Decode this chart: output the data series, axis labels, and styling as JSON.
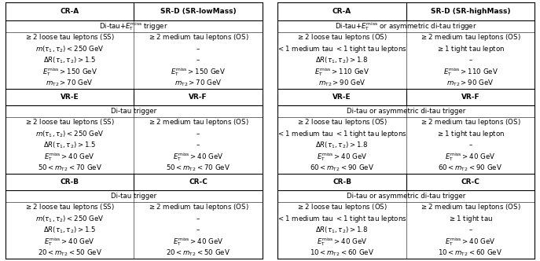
{
  "left_table": {
    "header": [
      "CR-A",
      "SR-D (SR-lowMass)"
    ],
    "sections": [
      {
        "merged_row": "Di-tau+$E_{\\rm T}^{\\rm miss}$ trigger",
        "rows": [
          [
            "$\\geq 2$ loose tau leptons (SS)",
            "$\\geq 2$ medium tau leptons (OS)"
          ],
          [
            "$m(\\tau_1, \\tau_2) < 250$ GeV",
            "–"
          ],
          [
            "$\\Delta R(\\tau_1, \\tau_2) > 1.5$",
            "–"
          ],
          [
            "$E_{\\rm T}^{\\rm miss} > 150$ GeV",
            "$E_{\\rm T}^{\\rm miss} > 150$ GeV"
          ],
          [
            "$m_{\\rm T2} > 70$ GeV",
            "$m_{\\rm T2} > 70$ GeV"
          ]
        ]
      },
      {
        "header2": [
          "VR-E",
          "VR-F"
        ]
      },
      {
        "merged_row": "Di-tau trigger",
        "rows": [
          [
            "$\\geq 2$ loose tau leptons (SS)",
            "$\\geq 2$ medium tau leptons (OS)"
          ],
          [
            "$m(\\tau_1, \\tau_2) < 250$ GeV",
            "–"
          ],
          [
            "$\\Delta R(\\tau_1, \\tau_2) > 1.5$",
            "–"
          ],
          [
            "$E_{\\rm T}^{\\rm miss} > 40$ GeV",
            "$E_{\\rm T}^{\\rm miss} > 40$ GeV"
          ],
          [
            "$50 < m_{\\rm T2} < 70$ GeV",
            "$50 < m_{\\rm T2} < 70$ GeV"
          ]
        ]
      },
      {
        "header2": [
          "CR-B",
          "CR-C"
        ]
      },
      {
        "merged_row": "Di-tau trigger",
        "rows": [
          [
            "$\\geq 2$ loose tau leptons (SS)",
            "$\\geq 2$ medium tau leptons (OS)"
          ],
          [
            "$m(\\tau_1, \\tau_2) < 250$ GeV",
            "–"
          ],
          [
            "$\\Delta R(\\tau_1, \\tau_2) > 1.5$",
            "–"
          ],
          [
            "$E_{\\rm T}^{\\rm miss} > 40$ GeV",
            "$E_{\\rm T}^{\\rm miss} > 40$ GeV"
          ],
          [
            "$20 < m_{\\rm T2} < 50$ GeV",
            "$20 < m_{\\rm T2} < 50$ GeV"
          ]
        ]
      }
    ]
  },
  "right_table": {
    "header": [
      "CR-A",
      "SR-D (SR-highMass)"
    ],
    "sections": [
      {
        "merged_row": "Di-tau+$E_{\\rm T}^{\\rm miss}$ or asymmetric di-tau trigger",
        "rows": [
          [
            "$\\geq 2$ loose tau leptons (OS)",
            "$\\geq 2$ medium tau leptons (OS)"
          ],
          [
            "$< 1$ medium tau $< 1$ tight tau leptons",
            "$\\geq 1$ tight tau lepton"
          ],
          [
            "$\\Delta R(\\tau_1, \\tau_2) > 1.8$",
            "–"
          ],
          [
            "$E_{\\rm T}^{\\rm miss} > 110$ GeV",
            "$E_{\\rm T}^{\\rm miss} > 110$ GeV"
          ],
          [
            "$m_{\\rm T2} > 90$ GeV",
            "$m_{\\rm T2} > 90$ GeV"
          ]
        ]
      },
      {
        "header2": [
          "VR-E",
          "VR-F"
        ]
      },
      {
        "merged_row": "Di-tau or asymmetric di-tau trigger",
        "rows": [
          [
            "$\\geq 2$ loose tau leptons (OS)",
            "$\\geq 2$ medium tau leptons (OS)"
          ],
          [
            "$< 1$ medium tau $< 1$ tight tau leptons",
            "$\\geq 1$ tight tau lepton"
          ],
          [
            "$\\Delta R(\\tau_1, \\tau_2) > 1.8$",
            "–"
          ],
          [
            "$E_{\\rm T}^{\\rm miss} > 40$ GeV",
            "$E_{\\rm T}^{\\rm miss} > 40$ GeV"
          ],
          [
            "$60 < m_{\\rm T2} < 90$ GeV",
            "$60 < m_{\\rm T2} < 90$ GeV"
          ]
        ]
      },
      {
        "header2": [
          "CR-B",
          "CR-C"
        ]
      },
      {
        "merged_row": "Di-tau or asymmetric di-tau trigger",
        "rows": [
          [
            "$\\geq 2$ loose tau leptons (OS)",
            "$\\geq 2$ medium tau leptons (OS)"
          ],
          [
            "$< 1$ medium tau $< 1$ tight tau leptons",
            "$\\geq 1$ tight tau"
          ],
          [
            "$\\Delta R(\\tau_1, \\tau_2) > 1.8$",
            "–"
          ],
          [
            "$E_{\\rm T}^{\\rm miss} > 40$ GeV",
            "$E_{\\rm T}^{\\rm miss} > 40$ GeV"
          ],
          [
            "$10 < m_{\\rm T2} < 60$ GeV",
            "$10 < m_{\\rm T2} < 60$ GeV"
          ]
        ]
      }
    ]
  }
}
